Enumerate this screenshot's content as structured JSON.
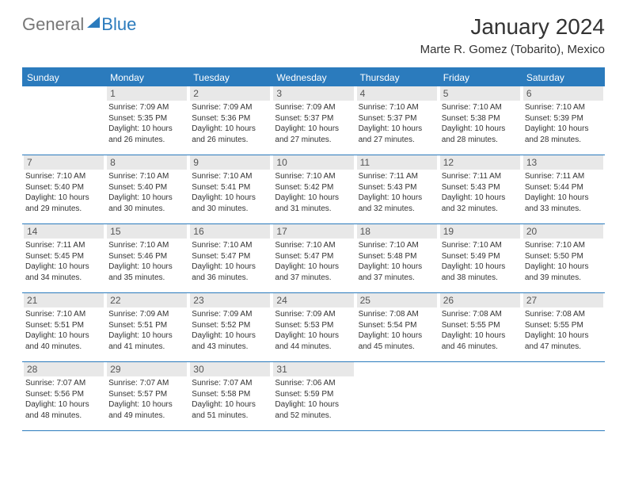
{
  "logo": {
    "part1": "General",
    "part2": "Blue"
  },
  "title": "January 2024",
  "location": "Marte R. Gomez (Tobarito), Mexico",
  "colors": {
    "header_bg": "#2b7bbd",
    "header_text": "#ffffff",
    "daynum_bg": "#e8e8e8",
    "border": "#2b7bbd",
    "text": "#333333",
    "logo_gray": "#777777",
    "logo_blue": "#2b7bbd",
    "page_bg": "#ffffff"
  },
  "day_headers": [
    "Sunday",
    "Monday",
    "Tuesday",
    "Wednesday",
    "Thursday",
    "Friday",
    "Saturday"
  ],
  "weeks": [
    [
      {
        "n": "",
        "sunrise": "",
        "sunset": "",
        "daylight": ""
      },
      {
        "n": "1",
        "sunrise": "Sunrise: 7:09 AM",
        "sunset": "Sunset: 5:35 PM",
        "daylight": "Daylight: 10 hours and 26 minutes."
      },
      {
        "n": "2",
        "sunrise": "Sunrise: 7:09 AM",
        "sunset": "Sunset: 5:36 PM",
        "daylight": "Daylight: 10 hours and 26 minutes."
      },
      {
        "n": "3",
        "sunrise": "Sunrise: 7:09 AM",
        "sunset": "Sunset: 5:37 PM",
        "daylight": "Daylight: 10 hours and 27 minutes."
      },
      {
        "n": "4",
        "sunrise": "Sunrise: 7:10 AM",
        "sunset": "Sunset: 5:37 PM",
        "daylight": "Daylight: 10 hours and 27 minutes."
      },
      {
        "n": "5",
        "sunrise": "Sunrise: 7:10 AM",
        "sunset": "Sunset: 5:38 PM",
        "daylight": "Daylight: 10 hours and 28 minutes."
      },
      {
        "n": "6",
        "sunrise": "Sunrise: 7:10 AM",
        "sunset": "Sunset: 5:39 PM",
        "daylight": "Daylight: 10 hours and 28 minutes."
      }
    ],
    [
      {
        "n": "7",
        "sunrise": "Sunrise: 7:10 AM",
        "sunset": "Sunset: 5:40 PM",
        "daylight": "Daylight: 10 hours and 29 minutes."
      },
      {
        "n": "8",
        "sunrise": "Sunrise: 7:10 AM",
        "sunset": "Sunset: 5:40 PM",
        "daylight": "Daylight: 10 hours and 30 minutes."
      },
      {
        "n": "9",
        "sunrise": "Sunrise: 7:10 AM",
        "sunset": "Sunset: 5:41 PM",
        "daylight": "Daylight: 10 hours and 30 minutes."
      },
      {
        "n": "10",
        "sunrise": "Sunrise: 7:10 AM",
        "sunset": "Sunset: 5:42 PM",
        "daylight": "Daylight: 10 hours and 31 minutes."
      },
      {
        "n": "11",
        "sunrise": "Sunrise: 7:11 AM",
        "sunset": "Sunset: 5:43 PM",
        "daylight": "Daylight: 10 hours and 32 minutes."
      },
      {
        "n": "12",
        "sunrise": "Sunrise: 7:11 AM",
        "sunset": "Sunset: 5:43 PM",
        "daylight": "Daylight: 10 hours and 32 minutes."
      },
      {
        "n": "13",
        "sunrise": "Sunrise: 7:11 AM",
        "sunset": "Sunset: 5:44 PM",
        "daylight": "Daylight: 10 hours and 33 minutes."
      }
    ],
    [
      {
        "n": "14",
        "sunrise": "Sunrise: 7:11 AM",
        "sunset": "Sunset: 5:45 PM",
        "daylight": "Daylight: 10 hours and 34 minutes."
      },
      {
        "n": "15",
        "sunrise": "Sunrise: 7:10 AM",
        "sunset": "Sunset: 5:46 PM",
        "daylight": "Daylight: 10 hours and 35 minutes."
      },
      {
        "n": "16",
        "sunrise": "Sunrise: 7:10 AM",
        "sunset": "Sunset: 5:47 PM",
        "daylight": "Daylight: 10 hours and 36 minutes."
      },
      {
        "n": "17",
        "sunrise": "Sunrise: 7:10 AM",
        "sunset": "Sunset: 5:47 PM",
        "daylight": "Daylight: 10 hours and 37 minutes."
      },
      {
        "n": "18",
        "sunrise": "Sunrise: 7:10 AM",
        "sunset": "Sunset: 5:48 PM",
        "daylight": "Daylight: 10 hours and 37 minutes."
      },
      {
        "n": "19",
        "sunrise": "Sunrise: 7:10 AM",
        "sunset": "Sunset: 5:49 PM",
        "daylight": "Daylight: 10 hours and 38 minutes."
      },
      {
        "n": "20",
        "sunrise": "Sunrise: 7:10 AM",
        "sunset": "Sunset: 5:50 PM",
        "daylight": "Daylight: 10 hours and 39 minutes."
      }
    ],
    [
      {
        "n": "21",
        "sunrise": "Sunrise: 7:10 AM",
        "sunset": "Sunset: 5:51 PM",
        "daylight": "Daylight: 10 hours and 40 minutes."
      },
      {
        "n": "22",
        "sunrise": "Sunrise: 7:09 AM",
        "sunset": "Sunset: 5:51 PM",
        "daylight": "Daylight: 10 hours and 41 minutes."
      },
      {
        "n": "23",
        "sunrise": "Sunrise: 7:09 AM",
        "sunset": "Sunset: 5:52 PM",
        "daylight": "Daylight: 10 hours and 43 minutes."
      },
      {
        "n": "24",
        "sunrise": "Sunrise: 7:09 AM",
        "sunset": "Sunset: 5:53 PM",
        "daylight": "Daylight: 10 hours and 44 minutes."
      },
      {
        "n": "25",
        "sunrise": "Sunrise: 7:08 AM",
        "sunset": "Sunset: 5:54 PM",
        "daylight": "Daylight: 10 hours and 45 minutes."
      },
      {
        "n": "26",
        "sunrise": "Sunrise: 7:08 AM",
        "sunset": "Sunset: 5:55 PM",
        "daylight": "Daylight: 10 hours and 46 minutes."
      },
      {
        "n": "27",
        "sunrise": "Sunrise: 7:08 AM",
        "sunset": "Sunset: 5:55 PM",
        "daylight": "Daylight: 10 hours and 47 minutes."
      }
    ],
    [
      {
        "n": "28",
        "sunrise": "Sunrise: 7:07 AM",
        "sunset": "Sunset: 5:56 PM",
        "daylight": "Daylight: 10 hours and 48 minutes."
      },
      {
        "n": "29",
        "sunrise": "Sunrise: 7:07 AM",
        "sunset": "Sunset: 5:57 PM",
        "daylight": "Daylight: 10 hours and 49 minutes."
      },
      {
        "n": "30",
        "sunrise": "Sunrise: 7:07 AM",
        "sunset": "Sunset: 5:58 PM",
        "daylight": "Daylight: 10 hours and 51 minutes."
      },
      {
        "n": "31",
        "sunrise": "Sunrise: 7:06 AM",
        "sunset": "Sunset: 5:59 PM",
        "daylight": "Daylight: 10 hours and 52 minutes."
      },
      {
        "n": "",
        "sunrise": "",
        "sunset": "",
        "daylight": ""
      },
      {
        "n": "",
        "sunrise": "",
        "sunset": "",
        "daylight": ""
      },
      {
        "n": "",
        "sunrise": "",
        "sunset": "",
        "daylight": ""
      }
    ]
  ]
}
